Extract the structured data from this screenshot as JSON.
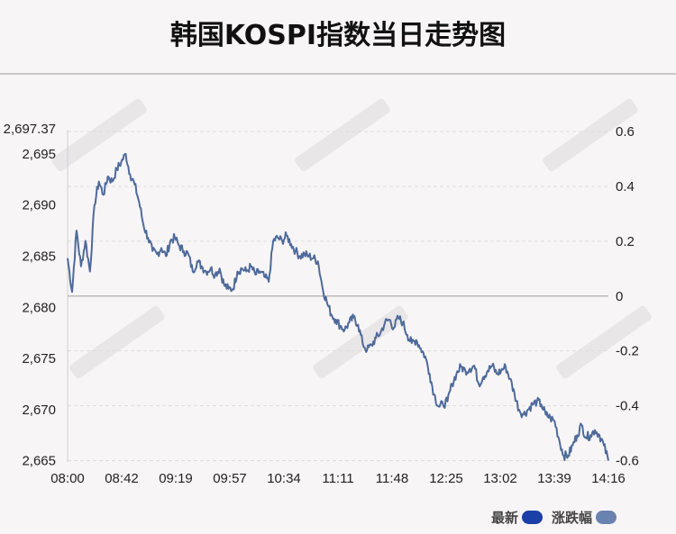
{
  "title": "韩国KOSPI指数当日走势图",
  "colors": {
    "line": "#4e6a9a",
    "latest": "#1a3fa6",
    "change": "#6a82b0",
    "baseline": "#bbbbbb",
    "grid": "#dddddd"
  },
  "legend": {
    "latest_label": "最新",
    "change_label": "涨跌幅"
  },
  "chart_data": {
    "type": "line",
    "title": "韩国KOSPI指数当日走势图",
    "x_ticks": [
      "08:00",
      "08:42",
      "09:19",
      "09:57",
      "10:34",
      "11:11",
      "11:48",
      "12:25",
      "13:02",
      "13:39",
      "14:16"
    ],
    "y_left": {
      "ticks": [
        2665,
        2670,
        2675,
        2680,
        2685,
        2690,
        2695
      ],
      "tick_labels": [
        "2,665",
        "2,670",
        "2,675",
        "2,680",
        "2,685",
        "2,690",
        "2,695"
      ],
      "top_label": "2,697.37",
      "range": [
        2664.88,
        2697.37
      ]
    },
    "y_right": {
      "ticks": [
        0.6,
        0.4,
        0.2,
        0,
        -0.2,
        -0.4,
        -0.6
      ],
      "tick_labels": [
        "0.6",
        "0.4",
        "0.2",
        "0",
        "-0.2",
        "-0.4",
        "-0.6"
      ],
      "unit": "%"
    },
    "baseline_value": 2681.1,
    "grid": true,
    "series": [
      {
        "values": [
          2684.8,
          2681.5,
          2687.5,
          2684.0,
          2686.5,
          2683.5,
          2690.0,
          2692.3,
          2691.0,
          2692.8,
          2692.3,
          2693.5,
          2694.2,
          2695.0,
          2693.0,
          2692.0,
          2690.3,
          2688.0,
          2686.8,
          2685.5,
          2685.2,
          2685.8,
          2685.0,
          2686.5,
          2686.8,
          2686.0,
          2685.5,
          2685.2,
          2683.5,
          2684.5,
          2684.0,
          2683.5,
          2683.8,
          2683.2,
          2683.8,
          2682.2,
          2681.8,
          2681.8,
          2683.5,
          2683.8,
          2683.5,
          2684.0,
          2683.2,
          2683.5,
          2683.0,
          2682.5,
          2686.5,
          2686.8,
          2686.5,
          2687.0,
          2686.2,
          2685.5,
          2685.0,
          2685.2,
          2685.0,
          2684.8,
          2684.5,
          2682.0,
          2680.5,
          2679.3,
          2678.8,
          2678.2,
          2677.8,
          2678.5,
          2679.0,
          2678.3,
          2676.5,
          2675.8,
          2676.3,
          2677.0,
          2677.5,
          2678.5,
          2678.8,
          2678.0,
          2679.0,
          2678.5,
          2677.3,
          2676.5,
          2676.8,
          2676.0,
          2675.2,
          2673.5,
          2671.5,
          2670.3,
          2670.5,
          2670.8,
          2672.5,
          2673.5,
          2674.2,
          2673.8,
          2674.0,
          2674.3,
          2672.5,
          2673.2,
          2673.8,
          2674.3,
          2673.5,
          2673.8,
          2674.2,
          2673.0,
          2671.5,
          2670.0,
          2669.5,
          2670.0,
          2670.5,
          2670.8,
          2670.5,
          2669.5,
          2669.2,
          2668.8,
          2667.0,
          2665.5,
          2665.5,
          2666.5,
          2667.5,
          2668.5,
          2667.3,
          2667.5,
          2668.0,
          2667.5,
          2666.5,
          2665.0
        ]
      }
    ]
  }
}
